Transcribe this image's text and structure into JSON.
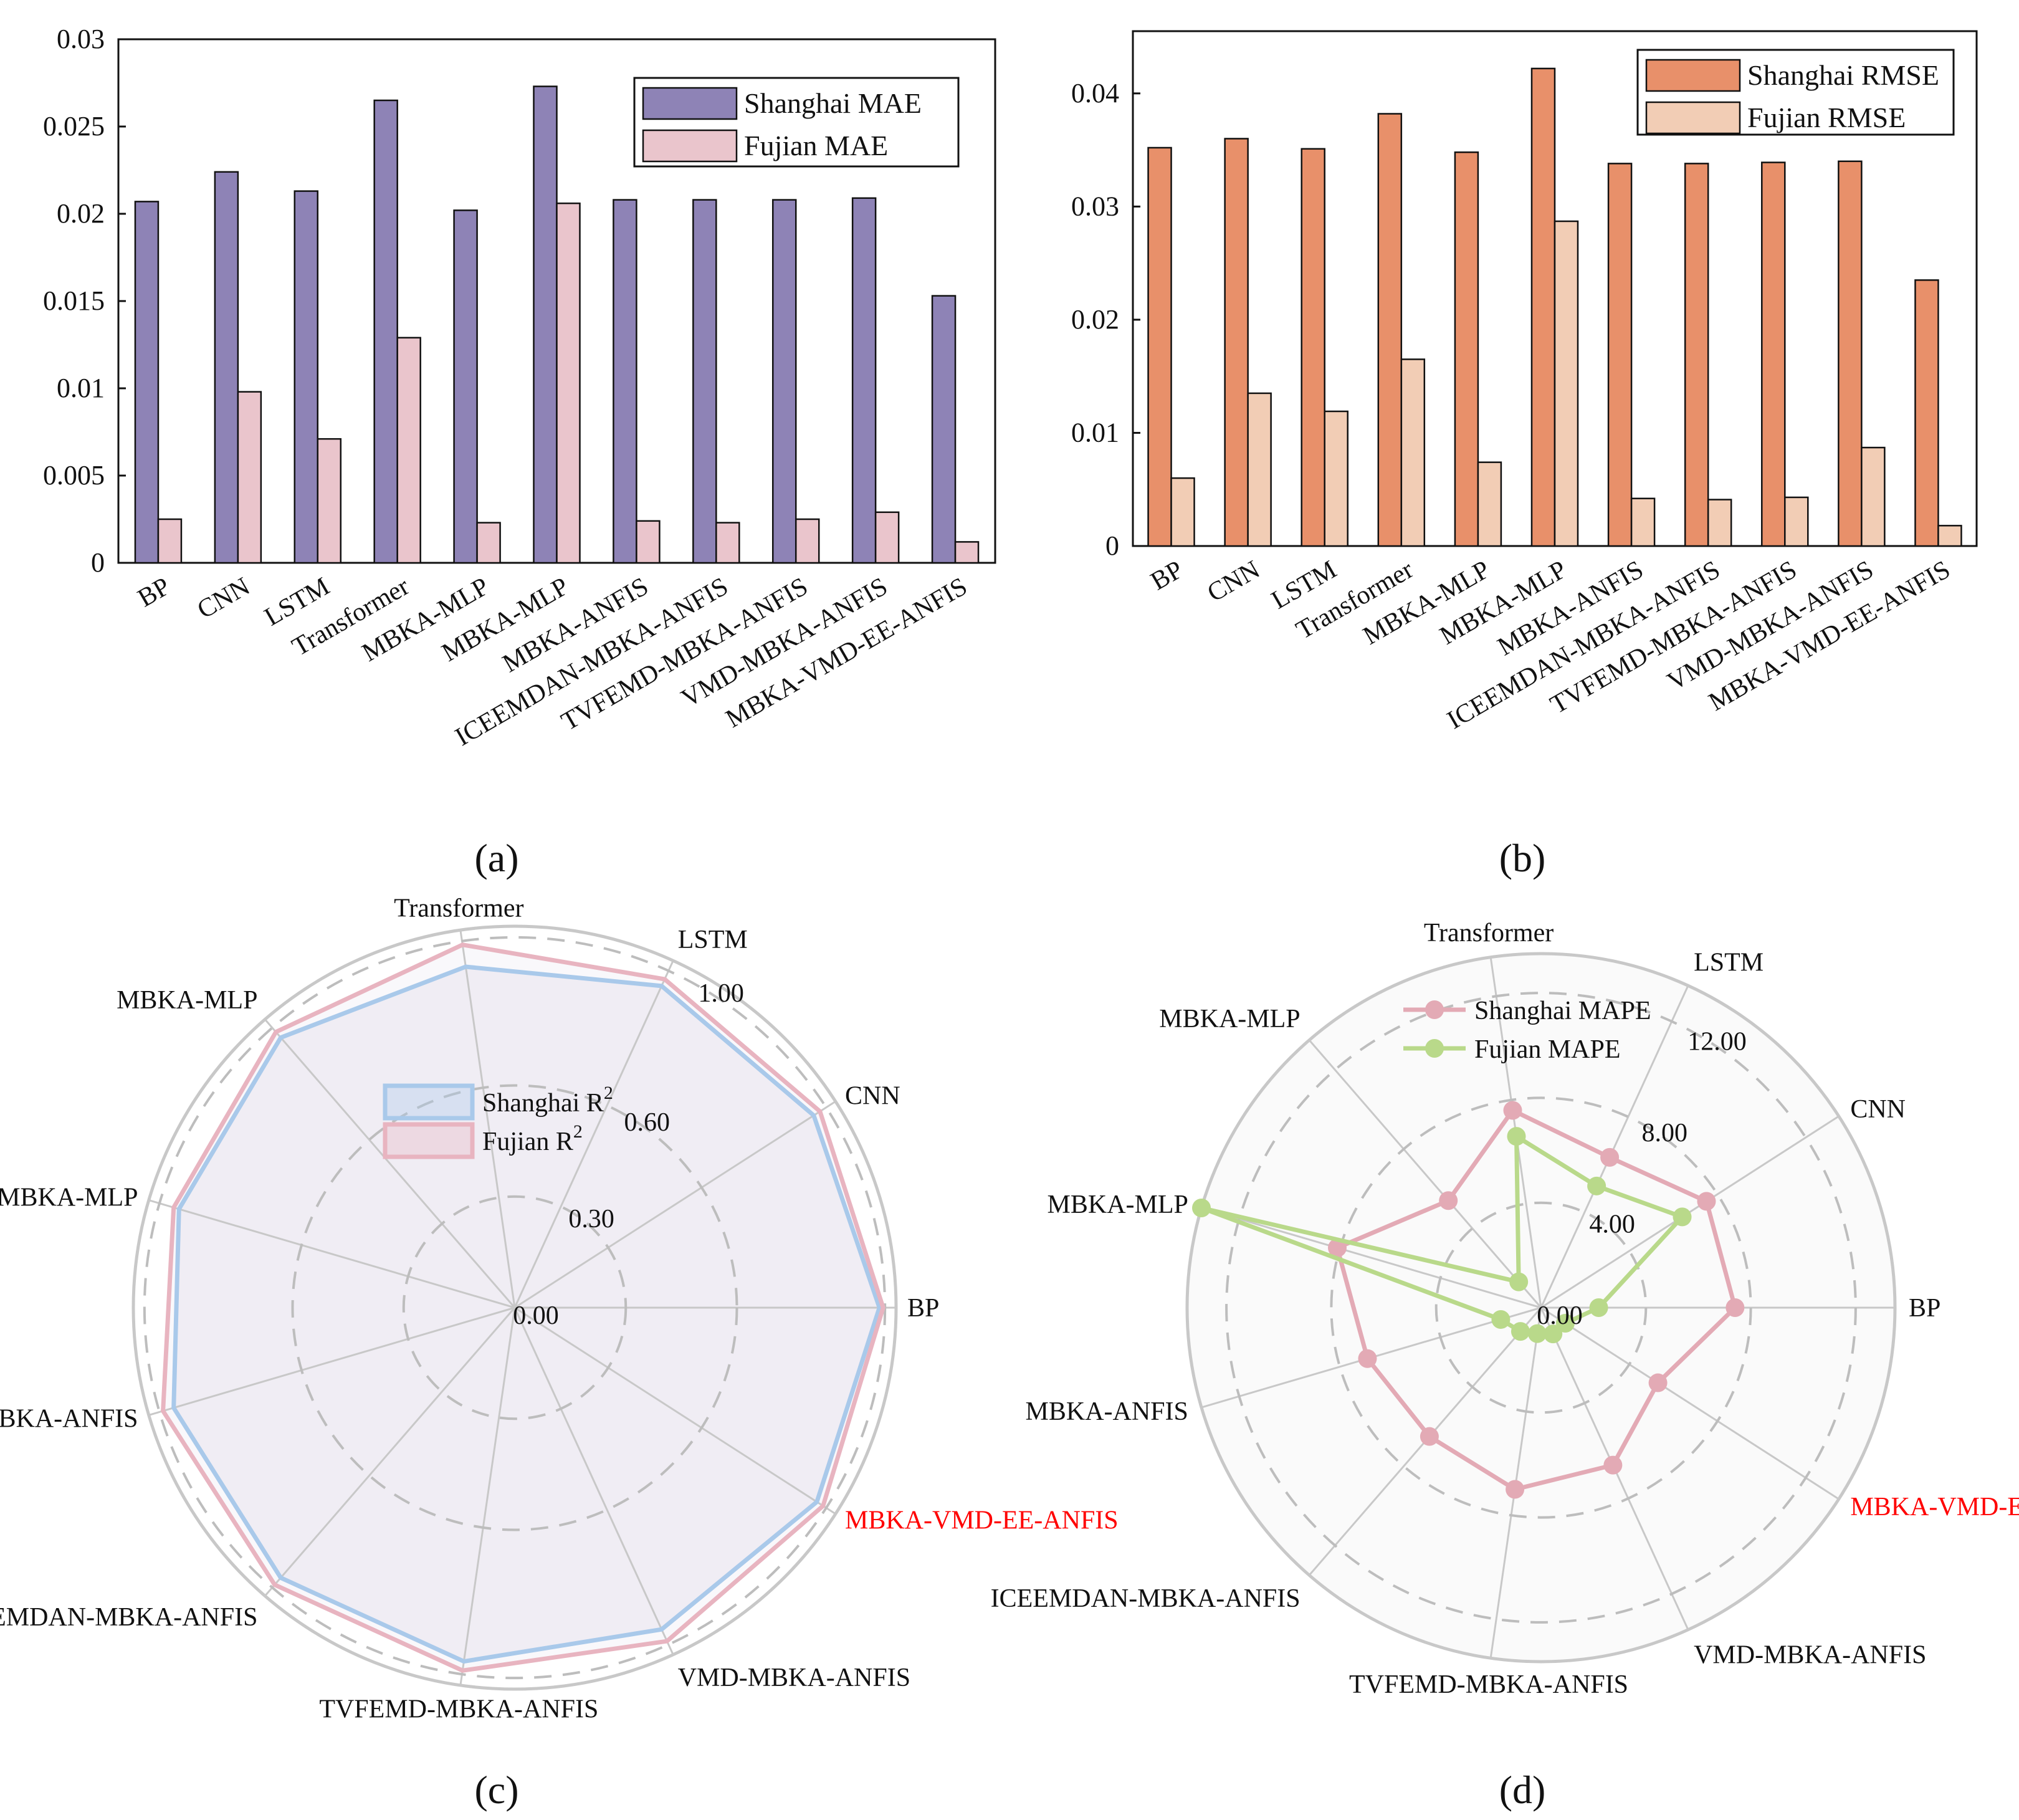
{
  "chart_data": [
    {
      "id": "a",
      "panel_label": "(a)",
      "type": "bar",
      "categories": [
        "BP",
        "CNN",
        "LSTM",
        "Transformer",
        "MBKA-MLP",
        "MBKA-MLP",
        "MBKA-ANFIS",
        "ICEEMDAN-MBKA-ANFIS",
        "TVFEMD-MBKA-ANFIS",
        "VMD-MBKA-ANFIS",
        "MBKA-VMD-EE-ANFIS"
      ],
      "series": [
        {
          "name": "Shanghai MAE",
          "color": "#8e83b6",
          "values": [
            0.0207,
            0.0224,
            0.0213,
            0.0265,
            0.0202,
            0.0273,
            0.0208,
            0.0208,
            0.0208,
            0.0209,
            0.0153
          ]
        },
        {
          "name": "Fujian MAE",
          "color": "#eac5cc",
          "values": [
            0.0025,
            0.0098,
            0.0071,
            0.0129,
            0.0023,
            0.0206,
            0.0024,
            0.0023,
            0.0025,
            0.0029,
            0.0012
          ]
        }
      ],
      "ylim": [
        0,
        0.03
      ],
      "yticks": [
        "0",
        "0.005",
        "0.01",
        "0.015",
        "0.02",
        "0.025",
        "0.03"
      ],
      "legend_position": "top-right",
      "grid": false
    },
    {
      "id": "b",
      "panel_label": "(b)",
      "type": "bar",
      "categories": [
        "BP",
        "CNN",
        "LSTM",
        "Transformer",
        "MBKA-MLP",
        "MBKA-MLP",
        "MBKA-ANFIS",
        "ICEEMDAN-MBKA-ANFIS",
        "TVFEMD-MBKA-ANFIS",
        "VMD-MBKA-ANFIS",
        "MBKA-VMD-EE-ANFIS"
      ],
      "series": [
        {
          "name": "Shanghai RMSE",
          "color": "#e8906a",
          "values": [
            0.0352,
            0.036,
            0.0351,
            0.0382,
            0.0348,
            0.0422,
            0.0338,
            0.0338,
            0.0339,
            0.034,
            0.0235
          ]
        },
        {
          "name": "Fujian RMSE",
          "color": "#f2cdb5",
          "values": [
            0.006,
            0.0135,
            0.0119,
            0.0165,
            0.0074,
            0.0287,
            0.0042,
            0.0041,
            0.0043,
            0.0087,
            0.0018
          ]
        }
      ],
      "ylim": [
        0,
        0.0455
      ],
      "yticks": [
        "0",
        "0.01",
        "0.02",
        "0.03",
        "0.04"
      ],
      "ytick_values": [
        0,
        0.01,
        0.02,
        0.03,
        0.04
      ],
      "legend_position": "top-right",
      "grid": false
    },
    {
      "id": "c",
      "panel_label": "(c)",
      "type": "radar",
      "axes": [
        "BP",
        "CNN",
        "LSTM",
        "Transformer",
        "MBKA-MLP",
        "MBKA-MLP",
        "MBKA-ANFIS",
        "ICEEMDAN-MBKA-ANFIS",
        "TVFEMD-MBKA-ANFIS",
        "VMD-MBKA-ANFIS",
        "MBKA-VMD-EE-ANFIS"
      ],
      "highlight_axis": "MBKA-VMD-EE-ANFIS",
      "highlight_color": "#ff0000",
      "range": [
        0,
        1.03
      ],
      "rings": [
        0.3,
        0.6,
        1.0
      ],
      "ring_labels": [
        "0.00",
        "0.30",
        "0.60",
        "1.00"
      ],
      "series": [
        {
          "name": "Shanghai R",
          "sup": "2",
          "color": "#a9c9ea",
          "values": [
            0.985,
            0.96,
            0.955,
            0.93,
            0.965,
            0.945,
            0.96,
            0.965,
            0.965,
            0.955,
            0.97
          ]
        },
        {
          "name": "Fujian R",
          "sup": "2",
          "color": "#e8b4c0",
          "values": [
            0.995,
            0.98,
            0.975,
            0.99,
            0.985,
            0.96,
            0.99,
            0.99,
            0.99,
            0.99,
            0.99
          ]
        }
      ],
      "legend_position": "upper-center"
    },
    {
      "id": "d",
      "panel_label": "(d)",
      "type": "radar",
      "axes": [
        "BP",
        "CNN",
        "LSTM",
        "Transformer",
        "MBKA-MLP",
        "MBKA-MLP",
        "MBKA-ANFIS",
        "ICEEMDAN-MBKA-ANFIS",
        "TVFEMD-MBKA-ANFIS",
        "VMD-MBKA-ANFIS",
        "MBKA-VMD-EE-ANFIS"
      ],
      "highlight_axis": "MBKA-VMD-EE-ANFIS",
      "highlight_color": "#ff0000",
      "range": [
        0,
        13.5
      ],
      "rings": [
        4,
        8,
        12
      ],
      "ring_labels": [
        "0.00",
        "4.00",
        "8.00",
        "12.00"
      ],
      "series": [
        {
          "name": "Shanghai MAPE",
          "color": "#e3aab5",
          "values": [
            7.4,
            7.5,
            6.3,
            7.6,
            5.4,
            8.1,
            6.9,
            6.5,
            7.0,
            6.6,
            5.3
          ]
        },
        {
          "name": "Fujian MAPE",
          "color": "#b9d98a",
          "values": [
            2.2,
            6.4,
            5.1,
            6.6,
            1.3,
            13.5,
            1.6,
            1.2,
            1.0,
            1.1,
            1.1
          ]
        }
      ],
      "legend_position": "upper-center"
    }
  ]
}
